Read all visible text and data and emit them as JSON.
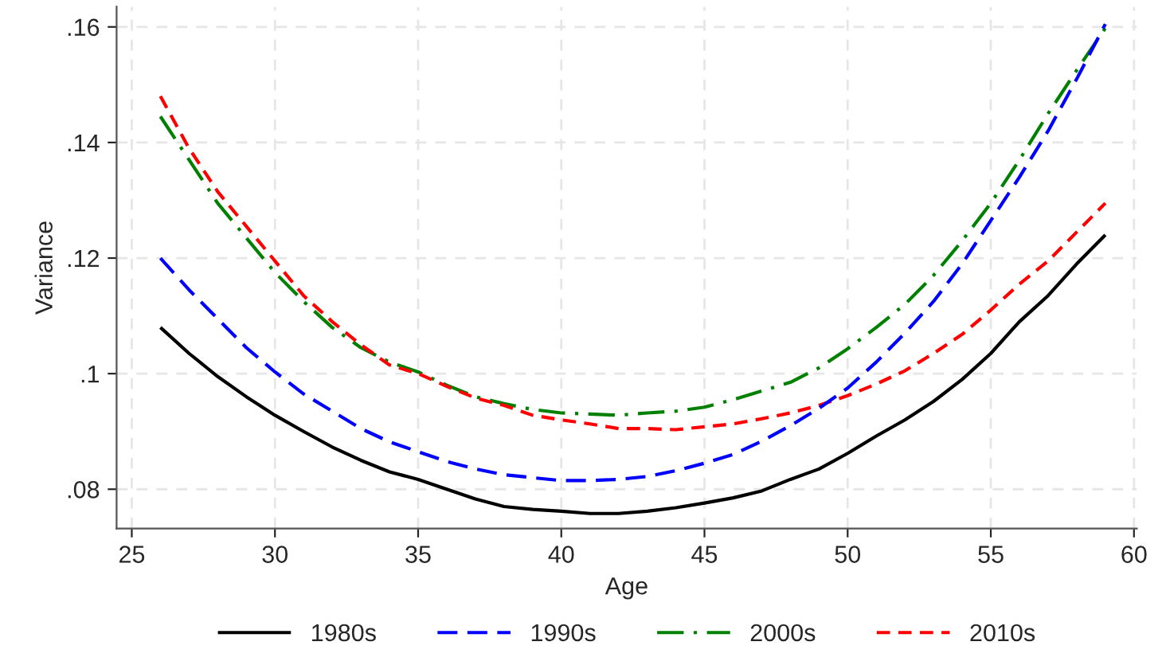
{
  "chart_data": {
    "type": "line",
    "xlabel": "Age",
    "ylabel": "Variance",
    "x": [
      26,
      27,
      28,
      29,
      30,
      31,
      32,
      33,
      34,
      35,
      36,
      37,
      38,
      39,
      40,
      41,
      42,
      43,
      44,
      45,
      46,
      47,
      48,
      49,
      50,
      51,
      52,
      53,
      54,
      55,
      56,
      57,
      58,
      59
    ],
    "series": [
      {
        "name": "1980s",
        "color": "#000000",
        "line_style": "solid",
        "values": [
          0.108,
          0.1035,
          0.0995,
          0.096,
          0.0928,
          0.09,
          0.0873,
          0.085,
          0.083,
          0.0817,
          0.08,
          0.0783,
          0.077,
          0.0765,
          0.0762,
          0.0758,
          0.0758,
          0.0762,
          0.0768,
          0.0776,
          0.0785,
          0.0797,
          0.0817,
          0.0835,
          0.0862,
          0.0892,
          0.092,
          0.0952,
          0.099,
          0.1035,
          0.109,
          0.1135,
          0.119,
          0.124
        ]
      },
      {
        "name": "1990s",
        "color": "#0000ff",
        "line_style": "longdash",
        "values": [
          0.12,
          0.1145,
          0.1095,
          0.1045,
          0.1003,
          0.0965,
          0.0935,
          0.0905,
          0.0882,
          0.0865,
          0.0848,
          0.0835,
          0.0825,
          0.082,
          0.0815,
          0.0815,
          0.0817,
          0.0822,
          0.0832,
          0.0845,
          0.086,
          0.0883,
          0.091,
          0.094,
          0.0975,
          0.102,
          0.107,
          0.1125,
          0.119,
          0.1265,
          0.134,
          0.142,
          0.151,
          0.1605
        ]
      },
      {
        "name": "2000s",
        "color": "#008000",
        "line_style": "dashdot",
        "values": [
          0.1445,
          0.137,
          0.1295,
          0.1235,
          0.1175,
          0.1125,
          0.108,
          0.1045,
          0.102,
          0.1003,
          0.098,
          0.096,
          0.0948,
          0.0938,
          0.0932,
          0.093,
          0.0928,
          0.0932,
          0.0935,
          0.0942,
          0.0955,
          0.097,
          0.0985,
          0.101,
          0.1043,
          0.108,
          0.112,
          0.117,
          0.123,
          0.1295,
          0.137,
          0.145,
          0.1525,
          0.1598
        ]
      },
      {
        "name": "2010s",
        "color": "#ff0000",
        "line_style": "dashed",
        "values": [
          0.148,
          0.139,
          0.1315,
          0.1255,
          0.1195,
          0.1135,
          0.109,
          0.105,
          0.1015,
          0.1,
          0.0978,
          0.0958,
          0.0945,
          0.0928,
          0.092,
          0.0913,
          0.0905,
          0.0905,
          0.0903,
          0.0908,
          0.0913,
          0.0922,
          0.0932,
          0.0945,
          0.0962,
          0.0982,
          0.1005,
          0.1035,
          0.1068,
          0.111,
          0.1155,
          0.1195,
          0.1245,
          0.1295
        ]
      }
    ],
    "xlim": [
      24.47,
      60.1
    ],
    "xticks": [
      25,
      30,
      35,
      40,
      45,
      50,
      55,
      60
    ],
    "ylim": [
      0.0732,
      0.1635
    ],
    "yticks": [
      {
        "value": 0.08,
        "label": ".08"
      },
      {
        "value": 0.1,
        "label": ".1"
      },
      {
        "value": 0.12,
        "label": ".12"
      },
      {
        "value": 0.14,
        "label": ".14"
      },
      {
        "value": 0.16,
        "label": ".16"
      }
    ],
    "grid": true,
    "legend": "bottom"
  }
}
